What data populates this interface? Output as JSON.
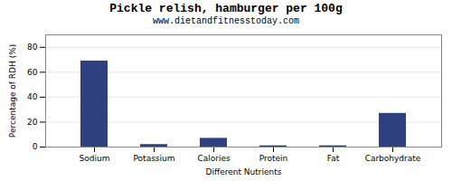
{
  "chart_data": {
    "type": "bar",
    "title": "Pickle relish, hamburger per 100g",
    "subtitle": "www.dietandfitnesstoday.com",
    "xlabel": "Different Nutrients",
    "ylabel": "Percentage of RDH (%)",
    "categories": [
      "Sodium",
      "Potassium",
      "Calories",
      "Protein",
      "Fat",
      "Carbohydrate"
    ],
    "values": [
      69,
      2,
      7,
      1,
      1,
      27
    ],
    "color": "#2e4080",
    "ylim": [
      0,
      90
    ],
    "yticks": [
      0,
      20,
      40,
      60,
      80
    ],
    "grid": true
  }
}
